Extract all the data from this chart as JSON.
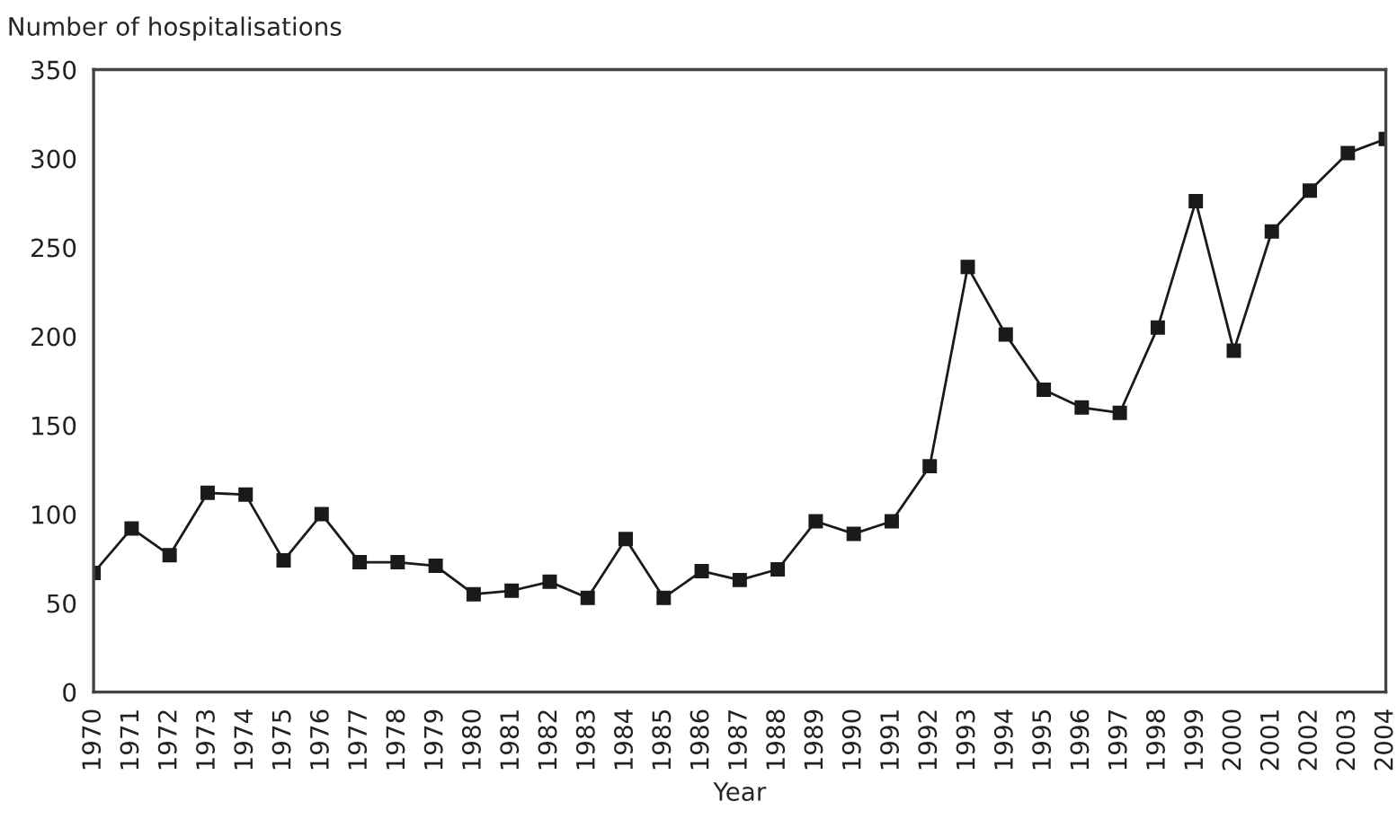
{
  "chart_data": {
    "type": "line",
    "ylabel": "Number of hospitalisations",
    "xlabel": "Year",
    "categories": [
      "1970",
      "1971",
      "1972",
      "1973",
      "1974",
      "1975",
      "1976",
      "1977",
      "1978",
      "1979",
      "1980",
      "1981",
      "1982",
      "1983",
      "1984",
      "1985",
      "1986",
      "1987",
      "1988",
      "1989",
      "1990",
      "1991",
      "1992",
      "1993",
      "1994",
      "1995",
      "1996",
      "1997",
      "1998",
      "1999",
      "2000",
      "2001",
      "2002",
      "2003",
      "2004"
    ],
    "series": [
      {
        "color": "#1a1a1a",
        "values": [
          67,
          92,
          77,
          112,
          111,
          74,
          100,
          73,
          73,
          71,
          55,
          57,
          62,
          53,
          86,
          53,
          68,
          63,
          69,
          96,
          89,
          96,
          127,
          239,
          201,
          170,
          160,
          157,
          205,
          276,
          192,
          259,
          282,
          303,
          311
        ]
      }
    ],
    "ylim": [
      0,
      350
    ],
    "yticks": [
      0,
      50,
      100,
      150,
      200,
      250,
      300,
      350
    ],
    "marker": "square",
    "line_style": "solid",
    "grid": false,
    "legend": false
  }
}
